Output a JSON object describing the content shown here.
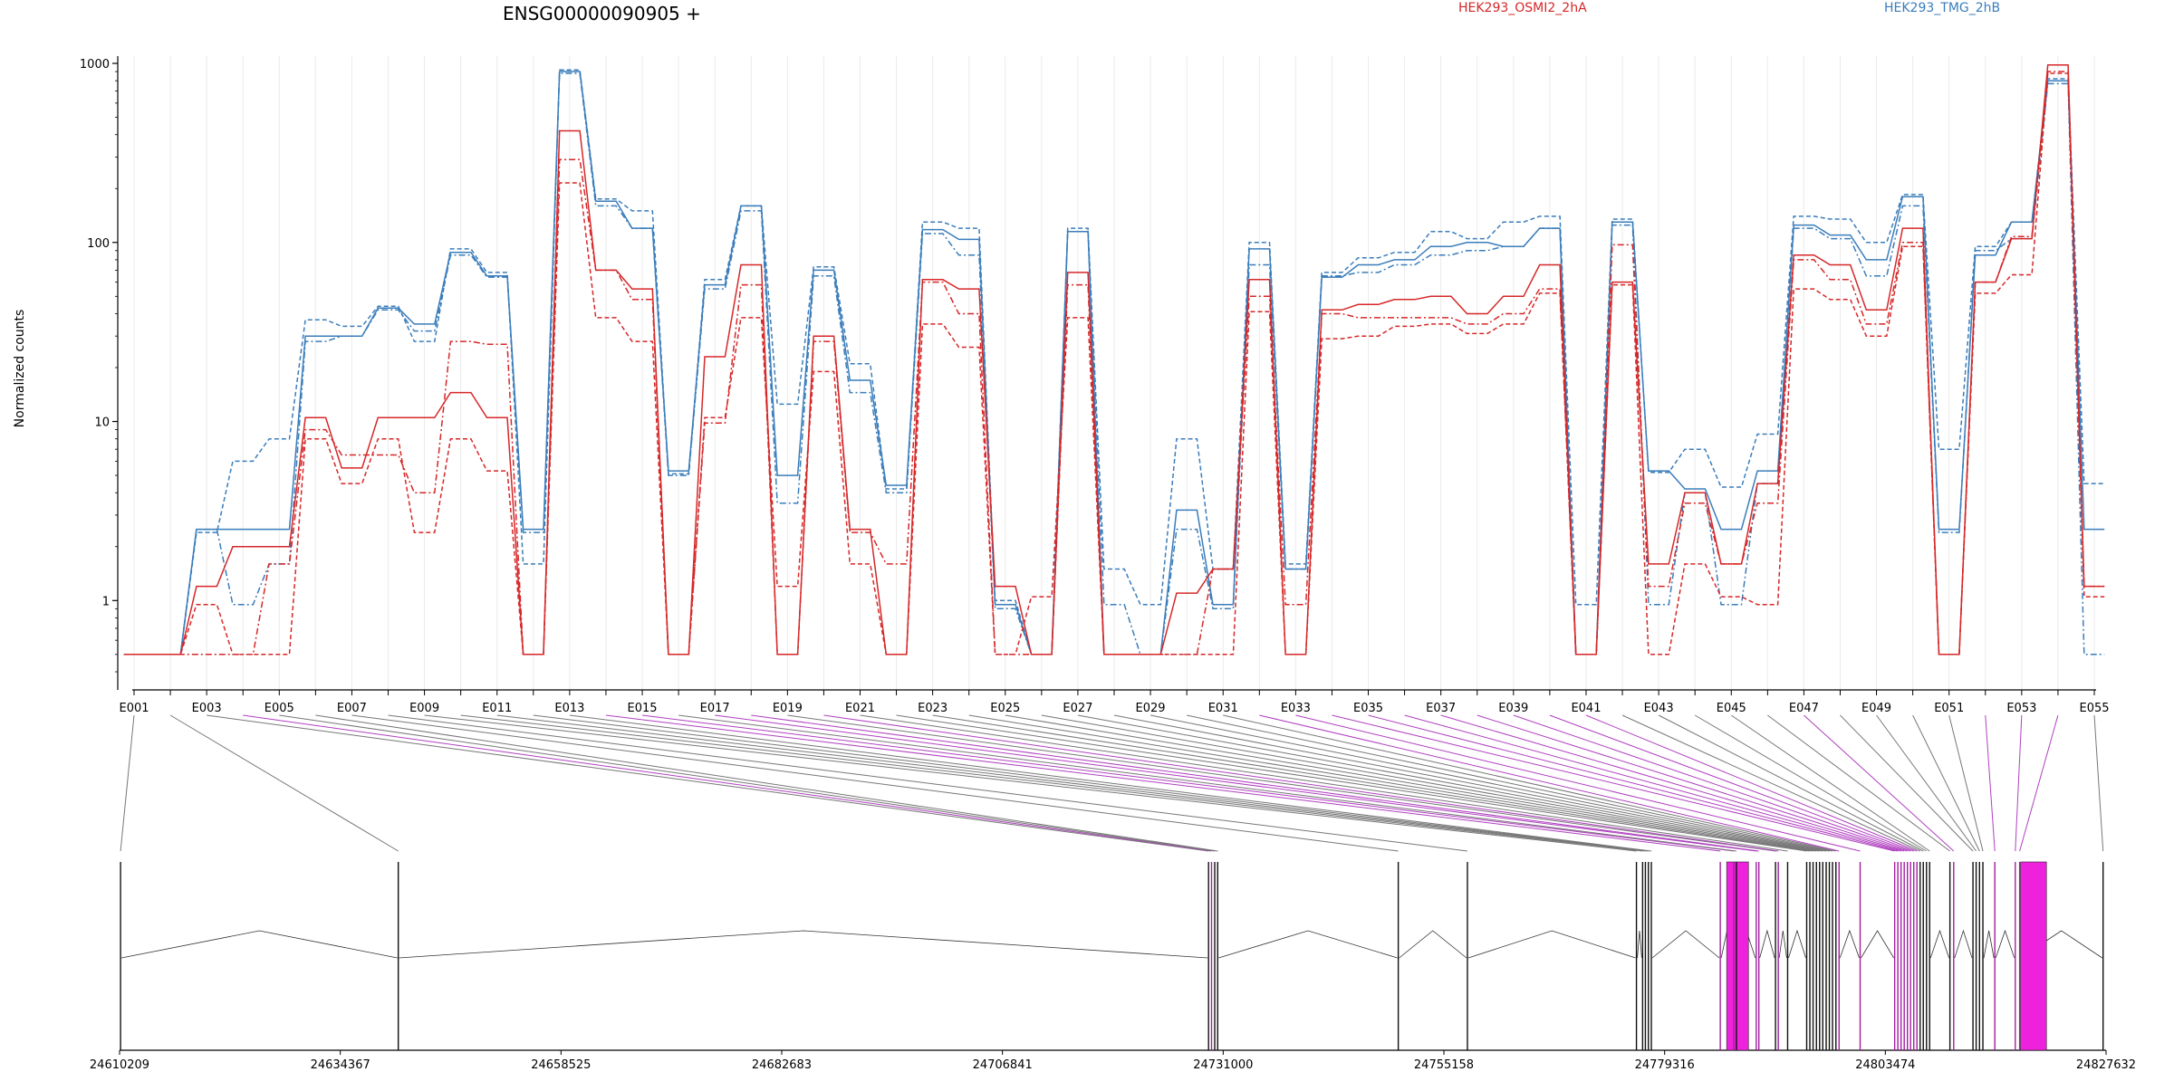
{
  "chart_data": {
    "type": "line",
    "title": "ENSG00000090905 +",
    "ylabel": "Normalized counts",
    "yscale": "log",
    "ylim": [
      0.4,
      1000
    ],
    "yticks": [
      1,
      10,
      100,
      1000
    ],
    "ytick_labels": [
      "1",
      "10",
      "100",
      "1000"
    ],
    "legend": [
      {
        "name": "HEK293_OSMI2_2hA",
        "color": "#d62728"
      },
      {
        "name": "HEK293_TMG_2hB",
        "color": "#3a7dbb"
      }
    ],
    "legend_placement": "top-right",
    "grid": "vertical",
    "categories": [
      "E001",
      "E002",
      "E003",
      "E004",
      "E005",
      "E006",
      "E007",
      "E008",
      "E009",
      "E010",
      "E011",
      "E012",
      "E013",
      "E014",
      "E015",
      "E016",
      "E017",
      "E018",
      "E019",
      "E020",
      "E021",
      "E022",
      "E023",
      "E024",
      "E025",
      "E026",
      "E027",
      "E028",
      "E029",
      "E030",
      "E031",
      "E032",
      "E033",
      "E034",
      "E035",
      "E036",
      "E037",
      "E038",
      "E039",
      "E040",
      "E041",
      "E042",
      "E043",
      "E044",
      "E045",
      "E046",
      "E047",
      "E048",
      "E049",
      "E050",
      "E051",
      "E052",
      "E053",
      "E054",
      "E055"
    ],
    "xtick_labels": [
      "E001",
      "E003",
      "E005",
      "E007",
      "E009",
      "E011",
      "E013",
      "E015",
      "E017",
      "E019",
      "E021",
      "E023",
      "E025",
      "E027",
      "E029",
      "E031",
      "E033",
      "E035",
      "E037",
      "E039",
      "E041",
      "E043",
      "E045",
      "E047",
      "E049",
      "E051",
      "E053",
      "E055"
    ],
    "series": [
      {
        "group": "HEK293_TMG_2hB",
        "color": "#3a7dbb",
        "style": "solid",
        "values": [
          0.5,
          0.5,
          2.5,
          2.5,
          2.5,
          30,
          30,
          43,
          35,
          88,
          65,
          2.5,
          900,
          170,
          120,
          5.3,
          58,
          160,
          5,
          70,
          17,
          4.4,
          118,
          104,
          0.95,
          0.5,
          115,
          0.5,
          0.5,
          3.2,
          0.95,
          92,
          1.5,
          64,
          75,
          80,
          95,
          100,
          95,
          120,
          0.5,
          130,
          5.3,
          4.2,
          2.5,
          5.3,
          125,
          110,
          80,
          180,
          2.5,
          85,
          130,
          800,
          2.5
        ]
      },
      {
        "group": "HEK293_TMG_2hB",
        "color": "#3a7dbb",
        "style": "dashed",
        "values": [
          0.5,
          0.5,
          2.4,
          6,
          8,
          37,
          34,
          44,
          28,
          92,
          68,
          1.6,
          920,
          175,
          150,
          5.1,
          62,
          160,
          12.5,
          73,
          21,
          4.2,
          130,
          120,
          1,
          0.5,
          120,
          1.5,
          0.95,
          8,
          1.5,
          100,
          1.6,
          68,
          82,
          88,
          115,
          105,
          130,
          140,
          0.95,
          135,
          5.2,
          7,
          4.3,
          8.5,
          140,
          135,
          100,
          185,
          7,
          95,
          130,
          820,
          4.5
        ]
      },
      {
        "group": "HEK293_TMG_2hB",
        "color": "#3a7dbb",
        "style": "dashdot",
        "values": [
          0.5,
          0.5,
          2.5,
          0.95,
          1.6,
          28,
          30,
          42,
          32,
          85,
          64,
          2.4,
          880,
          160,
          120,
          5,
          55,
          150,
          3.5,
          65,
          14.5,
          4,
          112,
          85,
          0.9,
          0.5,
          115,
          0.95,
          0.5,
          2.5,
          0.9,
          75,
          1.5,
          65,
          68,
          75,
          85,
          90,
          95,
          120,
          0.5,
          125,
          0.95,
          4,
          0.95,
          4.5,
          120,
          105,
          65,
          160,
          2.4,
          90,
          105,
          770,
          0.5
        ]
      },
      {
        "group": "HEK293_OSMI2_2hA",
        "color": "#d62728",
        "style": "solid",
        "values": [
          0.5,
          0.5,
          1.2,
          2,
          2,
          10.5,
          5.5,
          10.5,
          10.5,
          14.5,
          10.5,
          0.5,
          420,
          70,
          55,
          0.5,
          23,
          75,
          0.5,
          30,
          2.5,
          0.5,
          62,
          55,
          1.2,
          0.5,
          68,
          0.5,
          0.5,
          1.1,
          1.5,
          62,
          0.5,
          42,
          45,
          48,
          50,
          40,
          50,
          75,
          0.5,
          60,
          1.6,
          4,
          1.6,
          4.5,
          85,
          75,
          42,
          120,
          0.5,
          60,
          105,
          980,
          1.2
        ]
      },
      {
        "group": "HEK293_OSMI2_2hA",
        "color": "#d62728",
        "style": "dashed",
        "values": [
          0.5,
          0.5,
          0.95,
          0.5,
          0.5,
          8,
          4.5,
          8,
          2.4,
          8,
          5.3,
          0.5,
          215,
          38,
          28,
          0.5,
          10.5,
          38,
          1.2,
          19,
          1.6,
          0.5,
          35,
          26,
          0.5,
          1.05,
          38,
          0.5,
          0.5,
          0.5,
          0.5,
          41,
          0.5,
          29,
          30,
          34,
          35,
          31,
          35,
          52,
          0.5,
          58,
          0.5,
          1.6,
          1.05,
          0.95,
          55,
          48,
          30,
          95,
          0.5,
          52,
          66,
          880,
          1.05
        ]
      },
      {
        "group": "HEK293_OSMI2_2hA",
        "color": "#d62728",
        "style": "dashdot",
        "values": [
          0.5,
          0.5,
          0.5,
          0.5,
          1.6,
          9,
          6.5,
          6.5,
          4,
          28,
          27,
          0.5,
          290,
          70,
          48,
          0.5,
          9.8,
          58,
          0.5,
          28,
          2.4,
          1.6,
          60,
          40,
          0.5,
          0.5,
          58,
          0.5,
          0.5,
          0.5,
          1.5,
          50,
          0.95,
          40,
          38,
          38,
          38,
          35,
          40,
          55,
          0.5,
          97,
          1.2,
          3.5,
          1.6,
          3.5,
          80,
          62,
          35,
          100,
          0.5,
          60,
          108,
          900,
          1.2
        ]
      }
    ],
    "genomic_axis": {
      "tick_labels": [
        "24610209",
        "24634367",
        "24658525",
        "24682683",
        "24706841",
        "24731000",
        "24755158",
        "24779316",
        "24803474",
        "24827632"
      ]
    }
  }
}
